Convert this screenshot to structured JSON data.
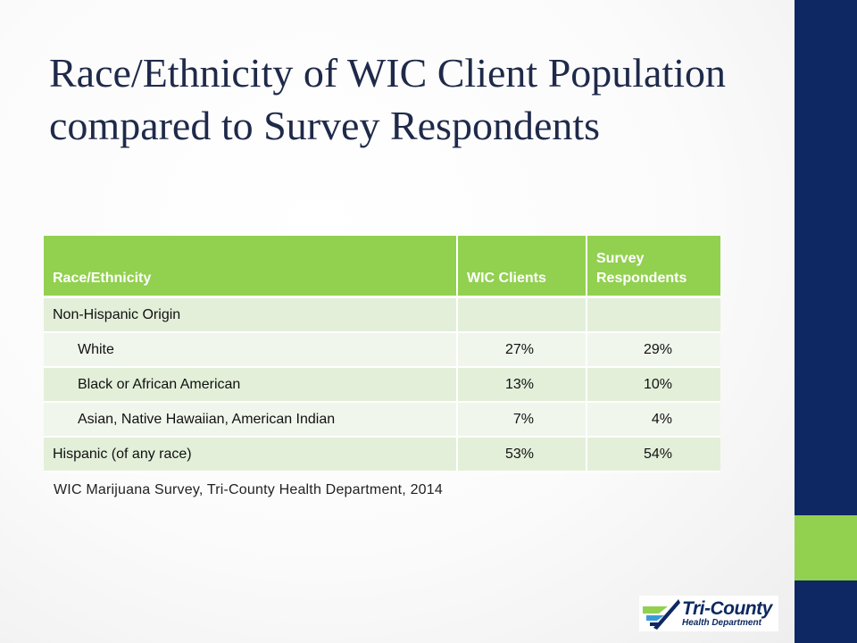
{
  "title": "Race/Ethnicity of WIC Client Population compared to Survey Respondents",
  "table": {
    "headers": [
      "Race/Ethnicity",
      "WIC Clients",
      "Survey Respondents"
    ],
    "rows": [
      {
        "label": "Non-Hispanic Origin",
        "wic": "",
        "survey": ""
      },
      {
        "label": "White",
        "wic": "27%",
        "survey": "29%"
      },
      {
        "label": "Black or African American",
        "wic": "13%",
        "survey": "10%"
      },
      {
        "label": "Asian, Native Hawaiian, American Indian",
        "wic": "7%",
        "survey": "4%"
      },
      {
        "label": "Hispanic (of any race)",
        "wic": "53%",
        "survey": "54%"
      }
    ]
  },
  "source": "WIC Marijuana Survey, Tri-County Health Department, 2014",
  "logo": {
    "line1": "Tri-County",
    "line2": "Health Department",
    "icon": "tri-county-arrow-logo-icon"
  },
  "colors": {
    "accent_green": "#92d050",
    "navy": "#0d2862",
    "row_odd": "#e3efd9",
    "row_even": "#f0f6ec"
  }
}
